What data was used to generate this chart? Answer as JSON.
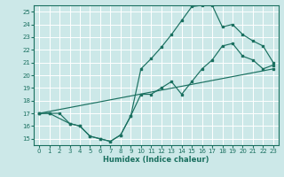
{
  "xlabel": "Humidex (Indice chaleur)",
  "xlim": [
    -0.5,
    23.5
  ],
  "ylim": [
    14.5,
    25.5
  ],
  "yticks": [
    15,
    16,
    17,
    18,
    19,
    20,
    21,
    22,
    23,
    24,
    25
  ],
  "xticks": [
    0,
    1,
    2,
    3,
    4,
    5,
    6,
    7,
    8,
    9,
    10,
    11,
    12,
    13,
    14,
    15,
    16,
    17,
    18,
    19,
    20,
    21,
    22,
    23
  ],
  "bg_color": "#cce8e8",
  "grid_color": "#ffffff",
  "line_color": "#1a7060",
  "line1_x": [
    0,
    1,
    2,
    3,
    4,
    5,
    6,
    7,
    8,
    9,
    10,
    11,
    12,
    13,
    14,
    15,
    16,
    17,
    18,
    19,
    20,
    21,
    22,
    23
  ],
  "line1_y": [
    17.0,
    17.0,
    17.0,
    16.2,
    16.0,
    15.2,
    15.0,
    14.8,
    15.3,
    16.8,
    18.5,
    18.5,
    19.0,
    19.5,
    18.5,
    19.5,
    20.5,
    21.2,
    22.3,
    22.5,
    21.5,
    21.2,
    20.5,
    20.8
  ],
  "line2_x": [
    0,
    1,
    3,
    4,
    5,
    6,
    7,
    8,
    9,
    10,
    11,
    12,
    13,
    14,
    15,
    16,
    17,
    18,
    19,
    20,
    21,
    22,
    23
  ],
  "line2_y": [
    17.0,
    17.0,
    16.2,
    16.0,
    15.2,
    15.0,
    14.8,
    15.3,
    16.8,
    20.5,
    21.3,
    22.2,
    23.2,
    24.3,
    25.4,
    25.5,
    25.5,
    23.8,
    24.0,
    23.2,
    22.7,
    22.3,
    21.0
  ],
  "line3_x": [
    0,
    23
  ],
  "line3_y": [
    17.0,
    20.5
  ]
}
